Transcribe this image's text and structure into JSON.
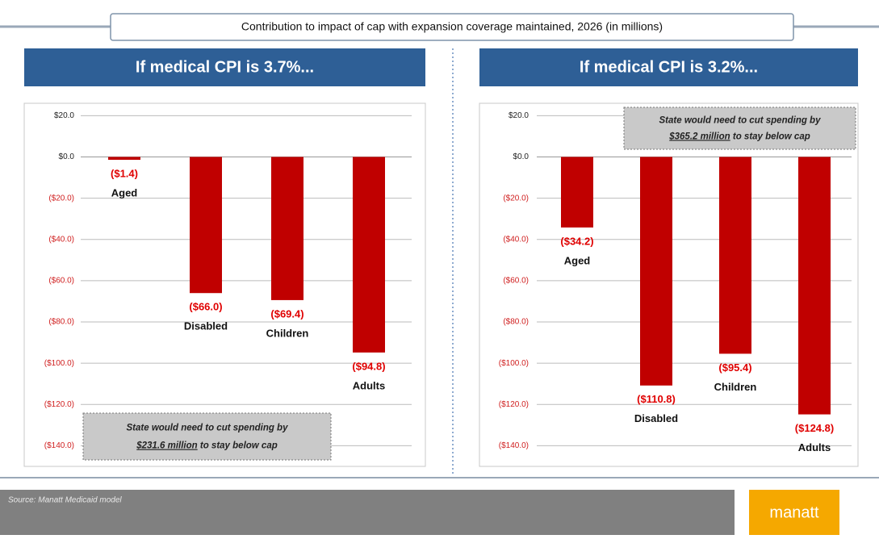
{
  "title": "Contribution to impact of cap with expansion coverage maintained, 2026 (in millions)",
  "source": "Source: Manatt Medicaid model",
  "logo": "manatt",
  "chart_data": [
    {
      "type": "bar",
      "title": "If medical CPI is 3.7%...",
      "categories": [
        "Aged",
        "Disabled",
        "Children",
        "Adults"
      ],
      "values": [
        -1.4,
        -66.0,
        -69.4,
        -94.8
      ],
      "value_labels": [
        "($1.4)",
        "($66.0)",
        "($69.4)",
        "($94.8)"
      ],
      "color": "#c00000",
      "ylim": [
        -150,
        26
      ],
      "yticks": [
        {
          "value": 20,
          "label": "$20.0"
        },
        {
          "value": 0,
          "label": "$0.0"
        },
        {
          "value": -20,
          "label": "($20.0)"
        },
        {
          "value": -40,
          "label": "($40.0)"
        },
        {
          "value": -60,
          "label": "($60.0)"
        },
        {
          "value": -80,
          "label": "($80.0)"
        },
        {
          "value": -100,
          "label": "($100.0)"
        },
        {
          "value": -120,
          "label": "($120.0)"
        },
        {
          "value": -140,
          "label": "($140.0)"
        }
      ],
      "grid": true,
      "annotation": [
        "State would need to cut spending  by",
        "$231.6 million",
        " to stay below cap"
      ]
    },
    {
      "type": "bar",
      "title": "If medical CPI is 3.2%...",
      "categories": [
        "Aged",
        "Disabled",
        "Children",
        "Adults"
      ],
      "values": [
        -34.2,
        -110.8,
        -95.4,
        -124.8
      ],
      "value_labels": [
        "($34.2)",
        "($110.8)",
        "($95.4)",
        "($124.8)"
      ],
      "color": "#c00000",
      "ylim": [
        -150,
        26
      ],
      "yticks": [
        {
          "value": 20,
          "label": "$20.0"
        },
        {
          "value": 0,
          "label": "$0.0"
        },
        {
          "value": -20,
          "label": "($20.0)"
        },
        {
          "value": -40,
          "label": "($40.0)"
        },
        {
          "value": -60,
          "label": "($60.0)"
        },
        {
          "value": -80,
          "label": "($80.0)"
        },
        {
          "value": -100,
          "label": "($100.0)"
        },
        {
          "value": -120,
          "label": "($120.0)"
        },
        {
          "value": -140,
          "label": "($140.0)"
        }
      ],
      "grid": true,
      "annotation": [
        "State would need to cut spending  by",
        "$365.2 million",
        " to stay below cap"
      ]
    }
  ]
}
